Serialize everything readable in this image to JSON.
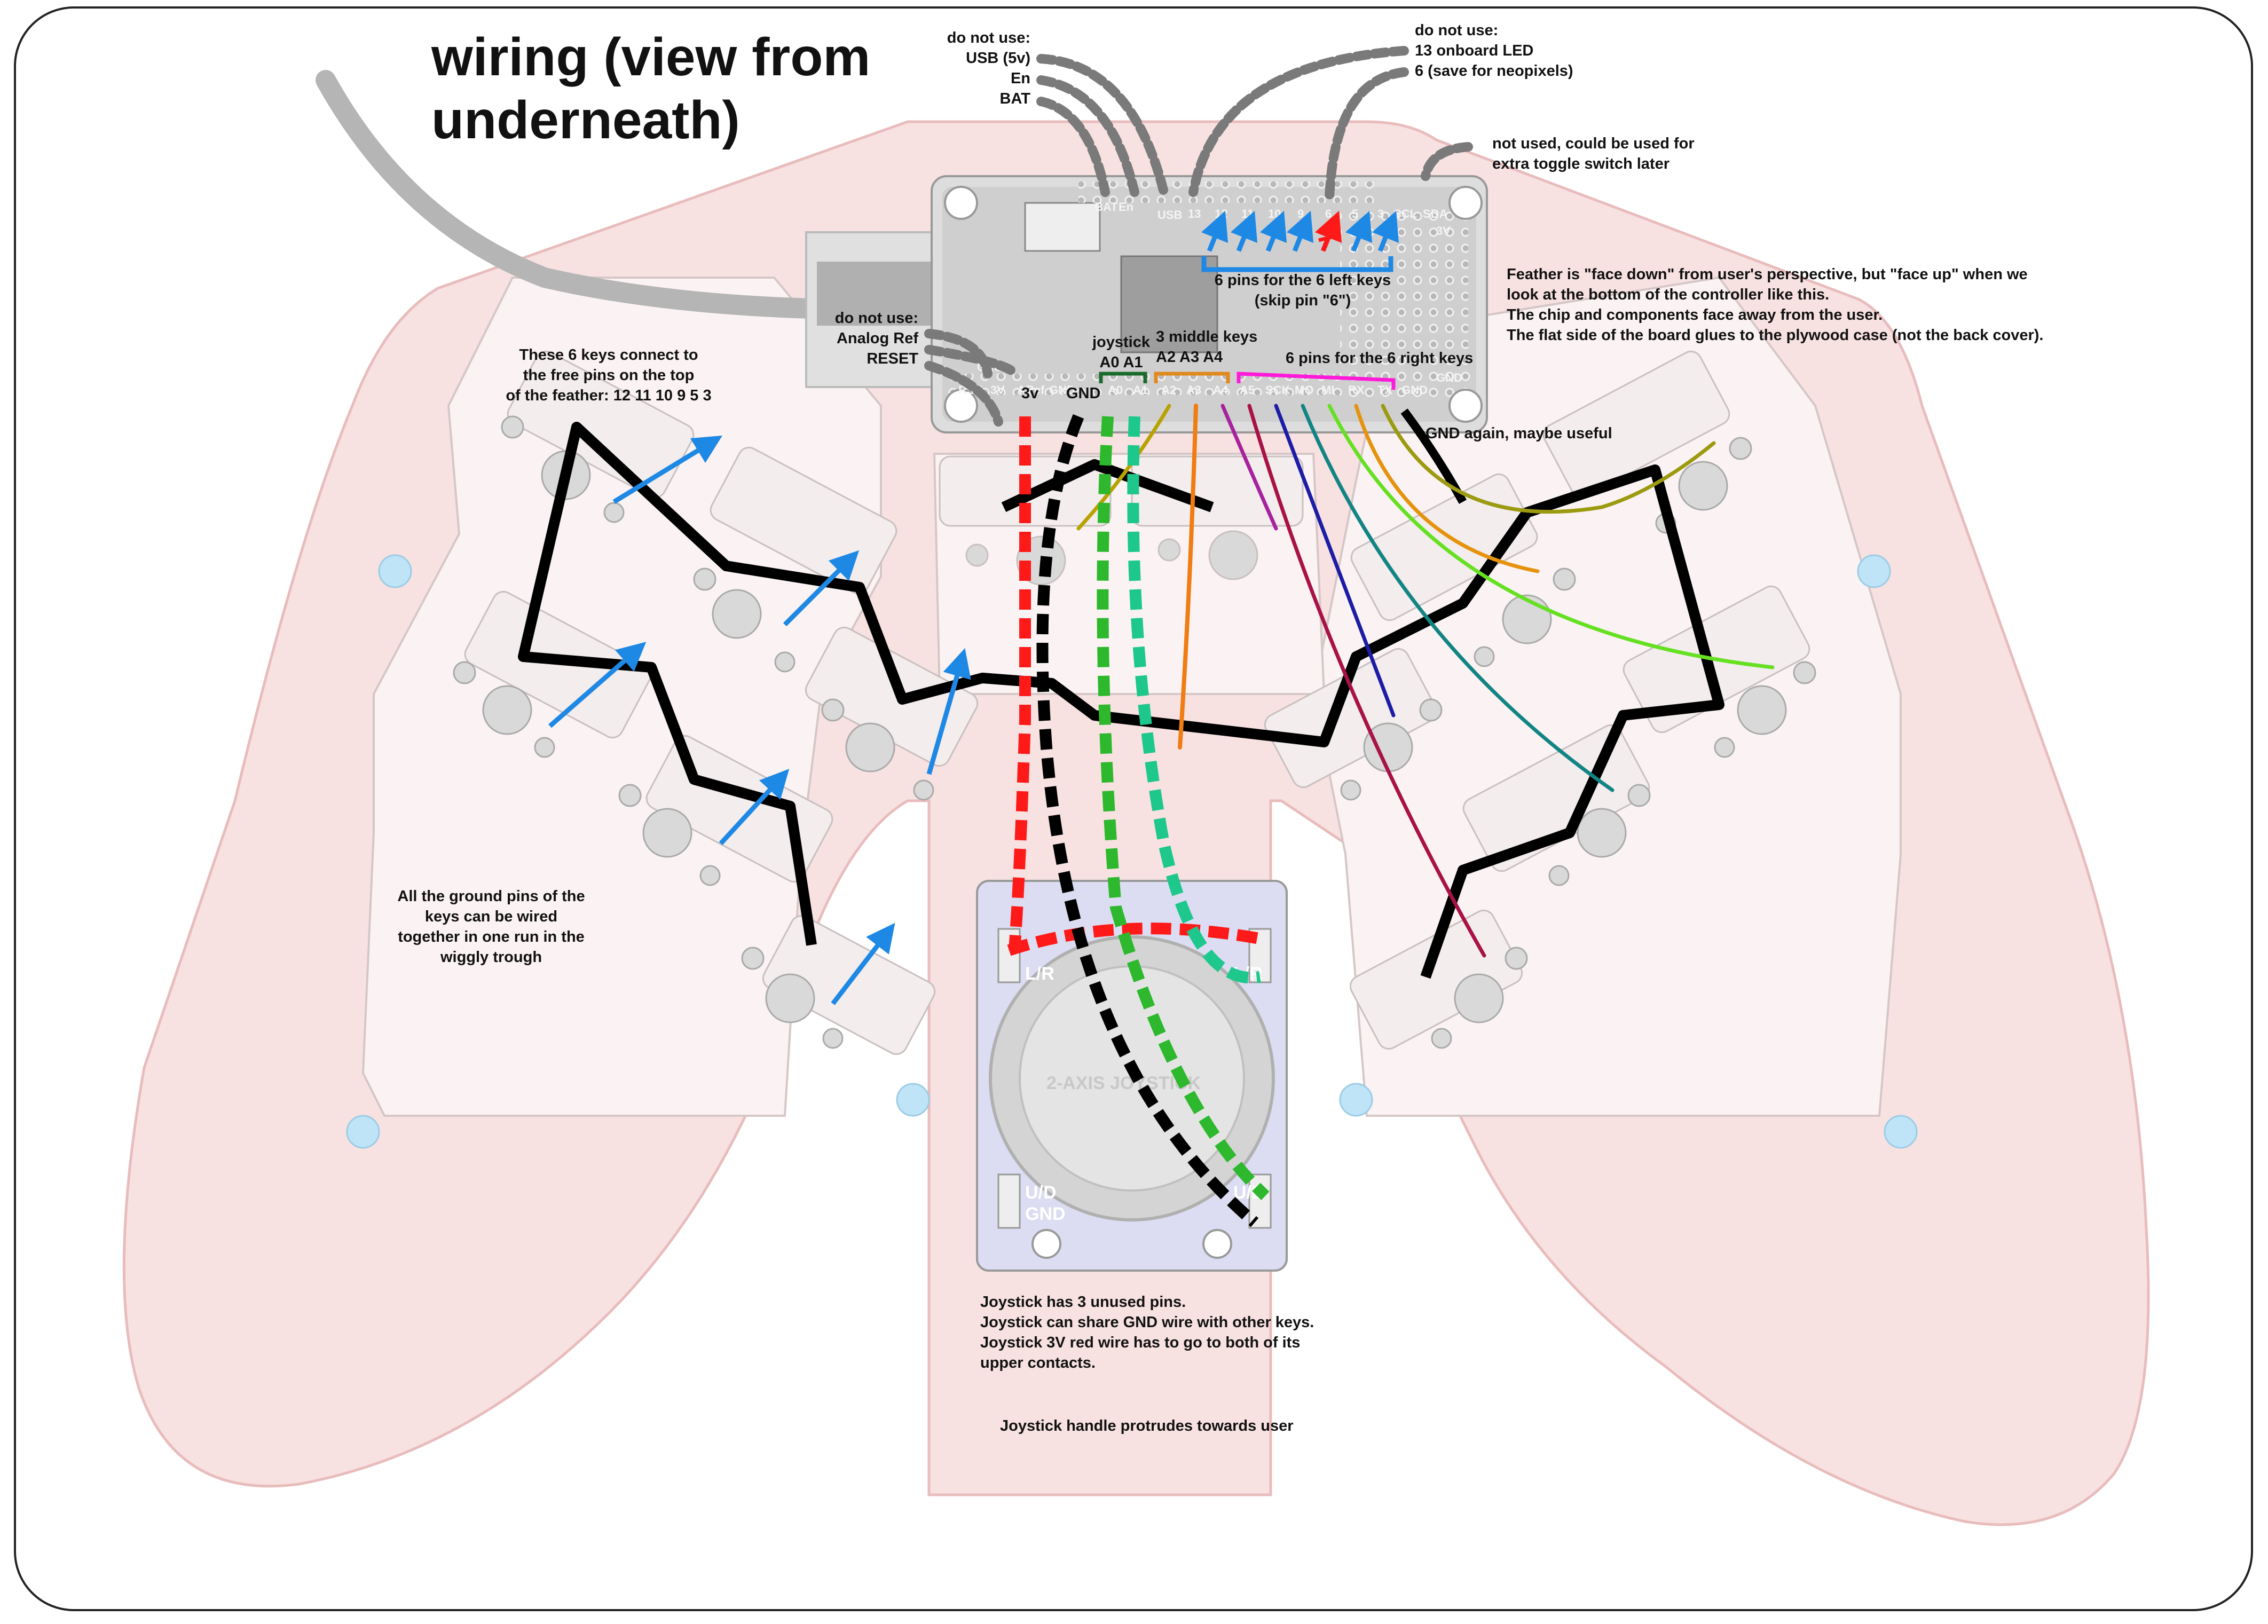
{
  "title": [
    "wiring (view from",
    "underneath)"
  ],
  "notes": {
    "top_left_pins": [
      "do not use:",
      "USB (5v)",
      "En",
      "BAT"
    ],
    "top_right_pins": [
      "do not use:",
      "13 onboard LED",
      "6 (save for neopixels)"
    ],
    "extra_pin": [
      "not used, could be used for",
      "extra toggle switch later"
    ],
    "left_pins_label": [
      "6 pins for the 6 left keys",
      "(skip pin \"6\")"
    ],
    "feather_note": [
      "Feather is \"face down\" from user's perspective, but \"face up\" when we",
      "look at the bottom of the controller like this.",
      "The chip and components face away from the user.",
      "The flat side of the board glues to the plywood case (not the back cover)."
    ],
    "analog_ref": [
      "do not use:",
      "Analog Ref",
      "RESET"
    ],
    "joystick_pins": [
      "joystick",
      "A0 A1"
    ],
    "middle_keys": [
      "3 middle keys",
      "A2 A3 A4"
    ],
    "right_keys": "6 pins for the 6 right keys",
    "pin_3v": "3v",
    "pin_gnd": "GND",
    "gnd_again": "GND again, maybe useful",
    "left_keys_note": [
      "These 6 keys connect to",
      "the free pins on the top",
      "of the feather: 12 11 10 9 5 3"
    ],
    "ground_note": [
      "All the ground pins of the",
      "keys can be wired",
      "together in one run in the",
      "wiggly trough"
    ],
    "joystick_note": [
      "Joystick has 3 unused pins.",
      "Joystick can share GND wire with other keys.",
      "Joystick 3V red wire has to go to both of its",
      "upper contacts."
    ],
    "joystick_handle": "Joystick handle protrudes towards user"
  },
  "feather_pins": {
    "top": [
      "BAT",
      "En",
      "USB",
      "13",
      "12",
      "11",
      "10",
      "9",
      "6",
      "5",
      "3",
      "SCL",
      "SDA"
    ],
    "bottom": [
      "RST",
      "3V",
      "ARef",
      "GND",
      "A0",
      "A1",
      "A2",
      "A3",
      "A4",
      "A5",
      "SCK",
      "MO",
      "MI",
      "RX",
      "TX",
      "GND"
    ],
    "side": [
      "CHG",
      "3V",
      "GND"
    ]
  },
  "joystick_pcb": [
    "L/R",
    "U/D",
    "GND",
    "2-AXIS JOYSTICK"
  ],
  "colors": {
    "case": "#f7e1e1",
    "case_edge": "#e9bcbc",
    "wire_3v": "#ff1a1a",
    "wire_gnd": "#000000",
    "wire_a0": "#2db82d",
    "wire_a1": "#1ec88c",
    "wire_a2": "#b8a200",
    "wire_a3": "#f07c12",
    "wire_a4": "#a8229e",
    "wire_a5": "#a81247",
    "wire_sck": "#1c1ca6",
    "wire_mo": "#138484",
    "wire_mi": "#66e022",
    "wire_rx": "#e5930e",
    "wire_tx": "#9c9a10",
    "arrow": "#1e88e5",
    "usb_cable": "#b5b5b5"
  }
}
